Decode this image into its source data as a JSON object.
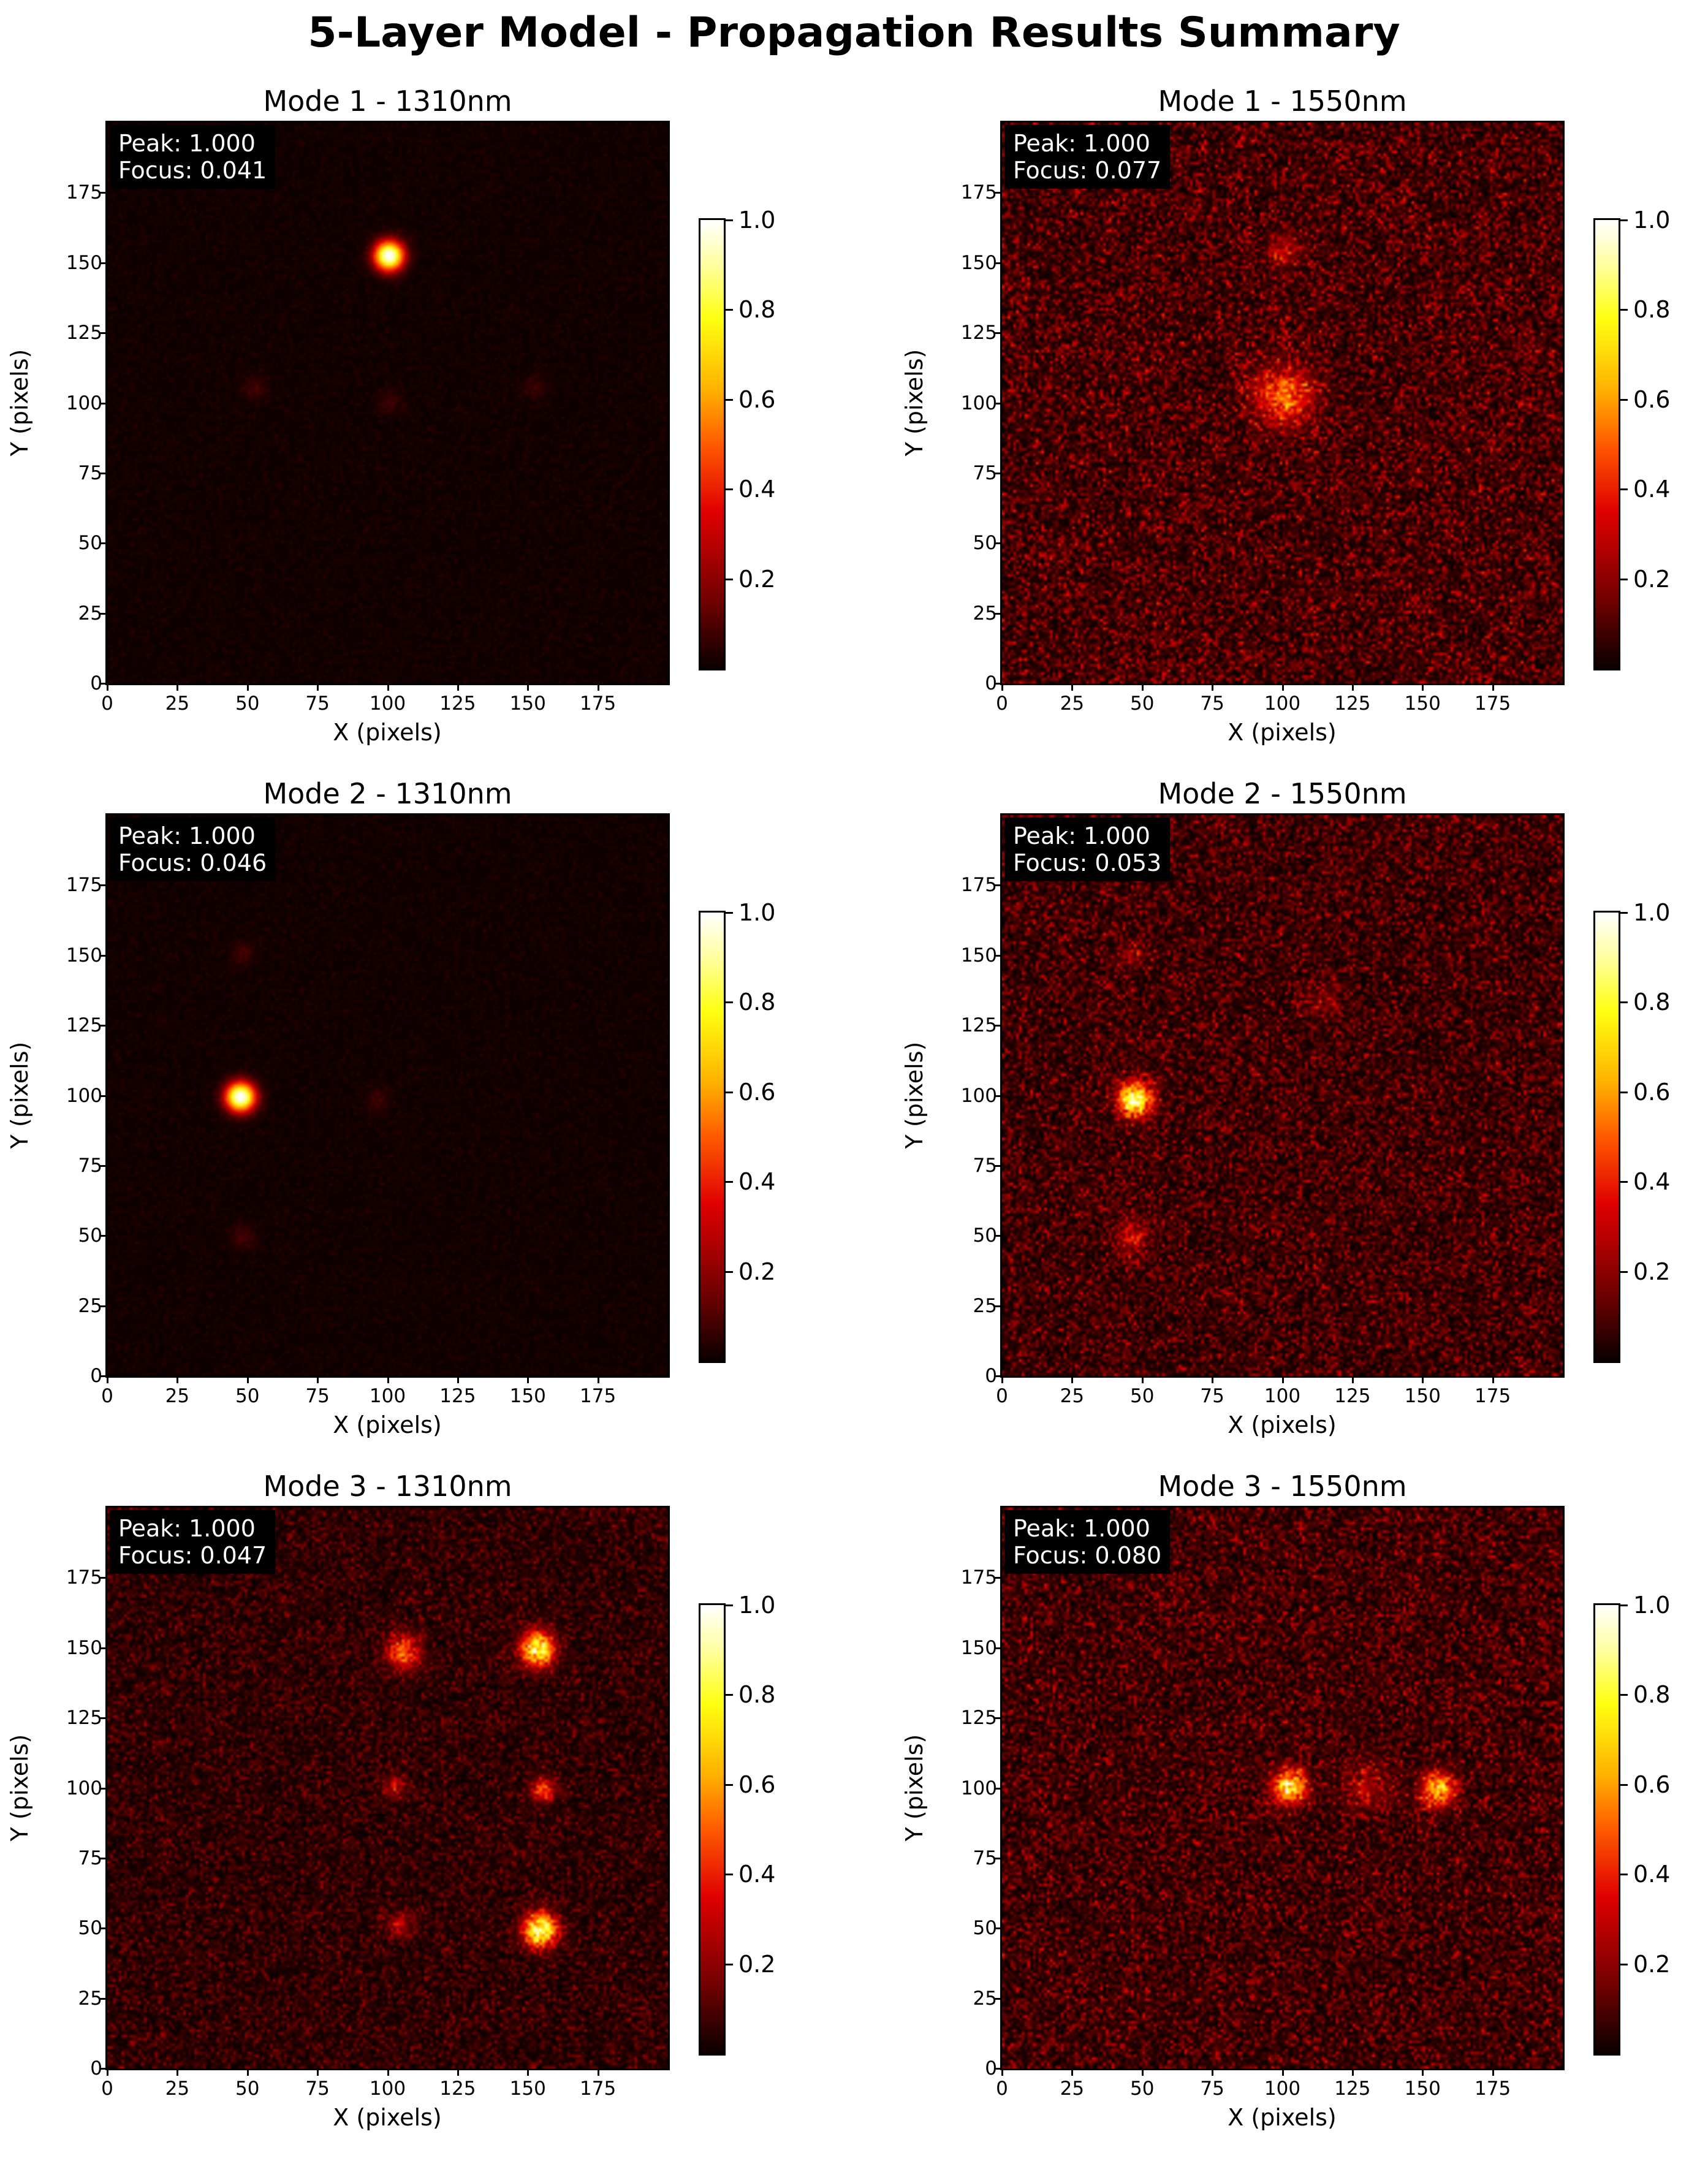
{
  "figure": {
    "title": "5-Layer Model - Propagation Results Summary"
  },
  "colormap": {
    "name": "hot",
    "stops": [
      "#0a0000",
      "#700000",
      "#e00000",
      "#ff5a00",
      "#ffb000",
      "#ffff10",
      "#ffffa0",
      "#ffffff"
    ]
  },
  "chart_data": [
    {
      "type": "heatmap",
      "title": "Mode 1 - 1310nm",
      "xlabel": "X (pixels)",
      "ylabel": "Y (pixels)",
      "xlim": [
        0,
        200
      ],
      "ylim": [
        0,
        200
      ],
      "xticks": [
        "0",
        "25",
        "50",
        "75",
        "100",
        "125",
        "150",
        "175"
      ],
      "yticks": [
        "0",
        "25",
        "50",
        "75",
        "100",
        "125",
        "150",
        "175"
      ],
      "colorbar": {
        "range": [
          0,
          1
        ],
        "ticks": [
          "0.2",
          "0.4",
          "0.6",
          "0.8",
          "1.0"
        ]
      },
      "stats": {
        "peak": "Peak: 1.000",
        "focus": "Focus: 0.041"
      },
      "noise_level": 0.03,
      "spots": [
        {
          "x": 100,
          "y": 152,
          "intensity": 1.0,
          "sigma": 3.5
        },
        {
          "x": 52,
          "y": 105,
          "intensity": 0.07,
          "sigma": 3
        },
        {
          "x": 100,
          "y": 100,
          "intensity": 0.06,
          "sigma": 3
        },
        {
          "x": 152,
          "y": 105,
          "intensity": 0.06,
          "sigma": 3
        }
      ]
    },
    {
      "type": "heatmap",
      "title": "Mode 1 - 1550nm",
      "xlabel": "X (pixels)",
      "ylabel": "Y (pixels)",
      "xlim": [
        0,
        200
      ],
      "ylim": [
        0,
        200
      ],
      "xticks": [
        "0",
        "25",
        "50",
        "75",
        "100",
        "125",
        "150",
        "175"
      ],
      "yticks": [
        "0",
        "25",
        "50",
        "75",
        "100",
        "125",
        "150",
        "175"
      ],
      "colorbar": {
        "range": [
          0,
          1
        ],
        "ticks": [
          "0.2",
          "0.4",
          "0.6",
          "0.8",
          "1.0"
        ]
      },
      "stats": {
        "peak": "Peak: 1.000",
        "focus": "Focus: 0.077"
      },
      "noise_level": 0.22,
      "spots": [
        {
          "x": 100,
          "y": 102,
          "intensity": 0.4,
          "sigma": 7
        },
        {
          "x": 100,
          "y": 154,
          "intensity": 0.2,
          "sigma": 4
        }
      ]
    },
    {
      "type": "heatmap",
      "title": "Mode 2 - 1310nm",
      "xlabel": "X (pixels)",
      "ylabel": "Y (pixels)",
      "xlim": [
        0,
        200
      ],
      "ylim": [
        0,
        200
      ],
      "xticks": [
        "0",
        "25",
        "50",
        "75",
        "100",
        "125",
        "150",
        "175"
      ],
      "yticks": [
        "0",
        "25",
        "50",
        "75",
        "100",
        "125",
        "150",
        "175"
      ],
      "colorbar": {
        "range": [
          0,
          1
        ],
        "ticks": [
          "0.2",
          "0.4",
          "0.6",
          "0.8",
          "1.0"
        ]
      },
      "stats": {
        "peak": "Peak: 1.000",
        "focus": "Focus: 0.046"
      },
      "noise_level": 0.03,
      "spots": [
        {
          "x": 47,
          "y": 99,
          "intensity": 1.0,
          "sigma": 3.5
        },
        {
          "x": 48,
          "y": 150,
          "intensity": 0.07,
          "sigma": 3
        },
        {
          "x": 48,
          "y": 49,
          "intensity": 0.07,
          "sigma": 3
        },
        {
          "x": 96,
          "y": 98,
          "intensity": 0.06,
          "sigma": 3
        }
      ]
    },
    {
      "type": "heatmap",
      "title": "Mode 2 - 1550nm",
      "xlabel": "X (pixels)",
      "ylabel": "Y (pixels)",
      "xlim": [
        0,
        200
      ],
      "ylim": [
        0,
        200
      ],
      "xticks": [
        "0",
        "25",
        "50",
        "75",
        "100",
        "125",
        "150",
        "175"
      ],
      "yticks": [
        "0",
        "25",
        "50",
        "75",
        "100",
        "125",
        "150",
        "175"
      ],
      "colorbar": {
        "range": [
          0,
          1
        ],
        "ticks": [
          "0.2",
          "0.4",
          "0.6",
          "0.8",
          "1.0"
        ]
      },
      "stats": {
        "peak": "Peak: 1.000",
        "focus": "Focus: 0.053"
      },
      "noise_level": 0.2,
      "spots": [
        {
          "x": 47,
          "y": 98,
          "intensity": 0.85,
          "sigma": 4
        },
        {
          "x": 46,
          "y": 49,
          "intensity": 0.2,
          "sigma": 4
        },
        {
          "x": 46,
          "y": 150,
          "intensity": 0.12,
          "sigma": 3.5
        },
        {
          "x": 114,
          "y": 133,
          "intensity": 0.1,
          "sigma": 4
        }
      ]
    },
    {
      "type": "heatmap",
      "title": "Mode 3 - 1310nm",
      "xlabel": "X (pixels)",
      "ylabel": "Y (pixels)",
      "xlim": [
        0,
        200
      ],
      "ylim": [
        0,
        200
      ],
      "xticks": [
        "0",
        "25",
        "50",
        "75",
        "100",
        "125",
        "150",
        "175"
      ],
      "yticks": [
        "0",
        "25",
        "50",
        "75",
        "100",
        "125",
        "150",
        "175"
      ],
      "colorbar": {
        "range": [
          0,
          1
        ],
        "ticks": [
          "0.2",
          "0.4",
          "0.6",
          "0.8",
          "1.0"
        ]
      },
      "stats": {
        "peak": "Peak: 1.000",
        "focus": "Focus: 0.047"
      },
      "noise_level": 0.14,
      "spots": [
        {
          "x": 153,
          "y": 149,
          "intensity": 0.85,
          "sigma": 4
        },
        {
          "x": 154,
          "y": 49,
          "intensity": 0.9,
          "sigma": 4
        },
        {
          "x": 105,
          "y": 148,
          "intensity": 0.45,
          "sigma": 4
        },
        {
          "x": 155,
          "y": 99,
          "intensity": 0.35,
          "sigma": 3
        },
        {
          "x": 102,
          "y": 100,
          "intensity": 0.2,
          "sigma": 3
        },
        {
          "x": 104,
          "y": 51,
          "intensity": 0.2,
          "sigma": 3
        }
      ]
    },
    {
      "type": "heatmap",
      "title": "Mode 3 - 1550nm",
      "xlabel": "X (pixels)",
      "ylabel": "Y (pixels)",
      "xlim": [
        0,
        200
      ],
      "ylim": [
        0,
        200
      ],
      "xticks": [
        "0",
        "25",
        "50",
        "75",
        "100",
        "125",
        "150",
        "175"
      ],
      "yticks": [
        "0",
        "25",
        "50",
        "75",
        "100",
        "125",
        "150",
        "175"
      ],
      "colorbar": {
        "range": [
          0,
          1
        ],
        "ticks": [
          "0.2",
          "0.4",
          "0.6",
          "0.8",
          "1.0"
        ]
      },
      "stats": {
        "peak": "Peak: 1.000",
        "focus": "Focus: 0.080"
      },
      "noise_level": 0.2,
      "spots": [
        {
          "x": 102,
          "y": 100,
          "intensity": 0.75,
          "sigma": 4
        },
        {
          "x": 155,
          "y": 99,
          "intensity": 0.6,
          "sigma": 4
        },
        {
          "x": 130,
          "y": 100,
          "intensity": 0.15,
          "sigma": 6
        }
      ]
    }
  ]
}
